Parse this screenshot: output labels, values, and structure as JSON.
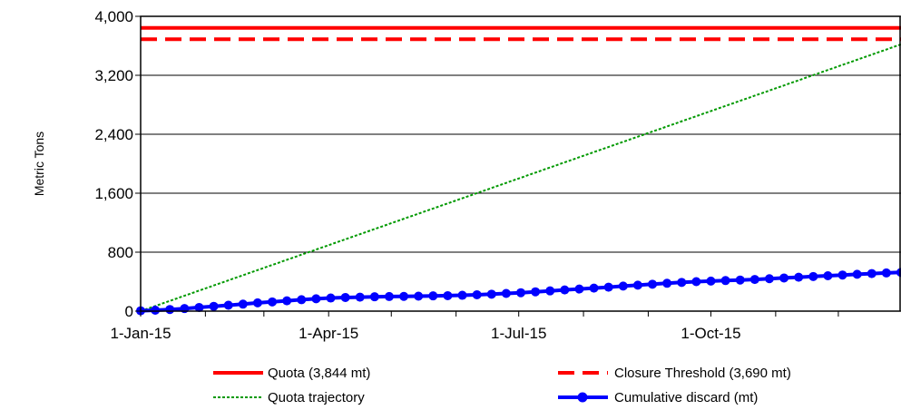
{
  "chart_data": {
    "type": "line",
    "title": "",
    "ylabel": "Metric Tons",
    "xlabel": "",
    "ylim": [
      0,
      4000
    ],
    "yticks": [
      0,
      800,
      1600,
      2400,
      3200,
      4000
    ],
    "ytick_labels": [
      "0",
      "800",
      "1,600",
      "2,400",
      "3,200",
      "4,000"
    ],
    "xlim": [
      "2015-01-01",
      "2015-12-31"
    ],
    "xticks": [
      "2015-01-01",
      "2015-04-01",
      "2015-07-01",
      "2015-10-01"
    ],
    "xtick_labels": [
      "1-Jan-15",
      "1-Apr-15",
      "1-Jul-15",
      "1-Oct-15"
    ],
    "grid": "horizontal",
    "legend_position": "bottom",
    "series": [
      {
        "name": "Quota (3,844 mt)",
        "style": "solid",
        "color": "#ff0000",
        "x": [
          "2015-01-01",
          "2015-12-31"
        ],
        "y": [
          3844,
          3844
        ]
      },
      {
        "name": "Closure Threshold (3,690 mt)",
        "style": "dashed",
        "color": "#ff0000",
        "x": [
          "2015-01-01",
          "2015-12-31"
        ],
        "y": [
          3690,
          3690
        ]
      },
      {
        "name": "Quota trajectory",
        "style": "dotted",
        "color": "#009900",
        "x": [
          "2015-01-01",
          "2015-12-31"
        ],
        "y": [
          0,
          3620
        ]
      },
      {
        "name": "Cumulative discard (mt)",
        "style": "solid-markers",
        "color": "#0000ff",
        "x": [
          "2015-01-01",
          "2015-01-08",
          "2015-01-15",
          "2015-01-22",
          "2015-01-29",
          "2015-02-05",
          "2015-02-12",
          "2015-02-19",
          "2015-02-26",
          "2015-03-05",
          "2015-03-12",
          "2015-03-19",
          "2015-03-26",
          "2015-04-02",
          "2015-04-09",
          "2015-04-16",
          "2015-04-23",
          "2015-04-30",
          "2015-05-07",
          "2015-05-14",
          "2015-05-21",
          "2015-05-28",
          "2015-06-04",
          "2015-06-11",
          "2015-06-18",
          "2015-06-25",
          "2015-07-02",
          "2015-07-09",
          "2015-07-16",
          "2015-07-23",
          "2015-07-30",
          "2015-08-06",
          "2015-08-13",
          "2015-08-20",
          "2015-08-27",
          "2015-09-03",
          "2015-09-10",
          "2015-09-17",
          "2015-09-24",
          "2015-10-01",
          "2015-10-08",
          "2015-10-15",
          "2015-10-22",
          "2015-10-29",
          "2015-11-05",
          "2015-11-12",
          "2015-11-19",
          "2015-11-26",
          "2015-12-03",
          "2015-12-10",
          "2015-12-17",
          "2015-12-24",
          "2015-12-31"
        ],
        "y": [
          5,
          12,
          22,
          35,
          50,
          65,
          80,
          95,
          112,
          125,
          140,
          155,
          168,
          178,
          185,
          190,
          195,
          198,
          200,
          203,
          207,
          210,
          215,
          222,
          230,
          240,
          250,
          262,
          275,
          288,
          300,
          312,
          325,
          340,
          352,
          365,
          378,
          390,
          400,
          408,
          415,
          422,
          430,
          440,
          450,
          460,
          470,
          480,
          490,
          500,
          510,
          518,
          525
        ]
      }
    ]
  }
}
